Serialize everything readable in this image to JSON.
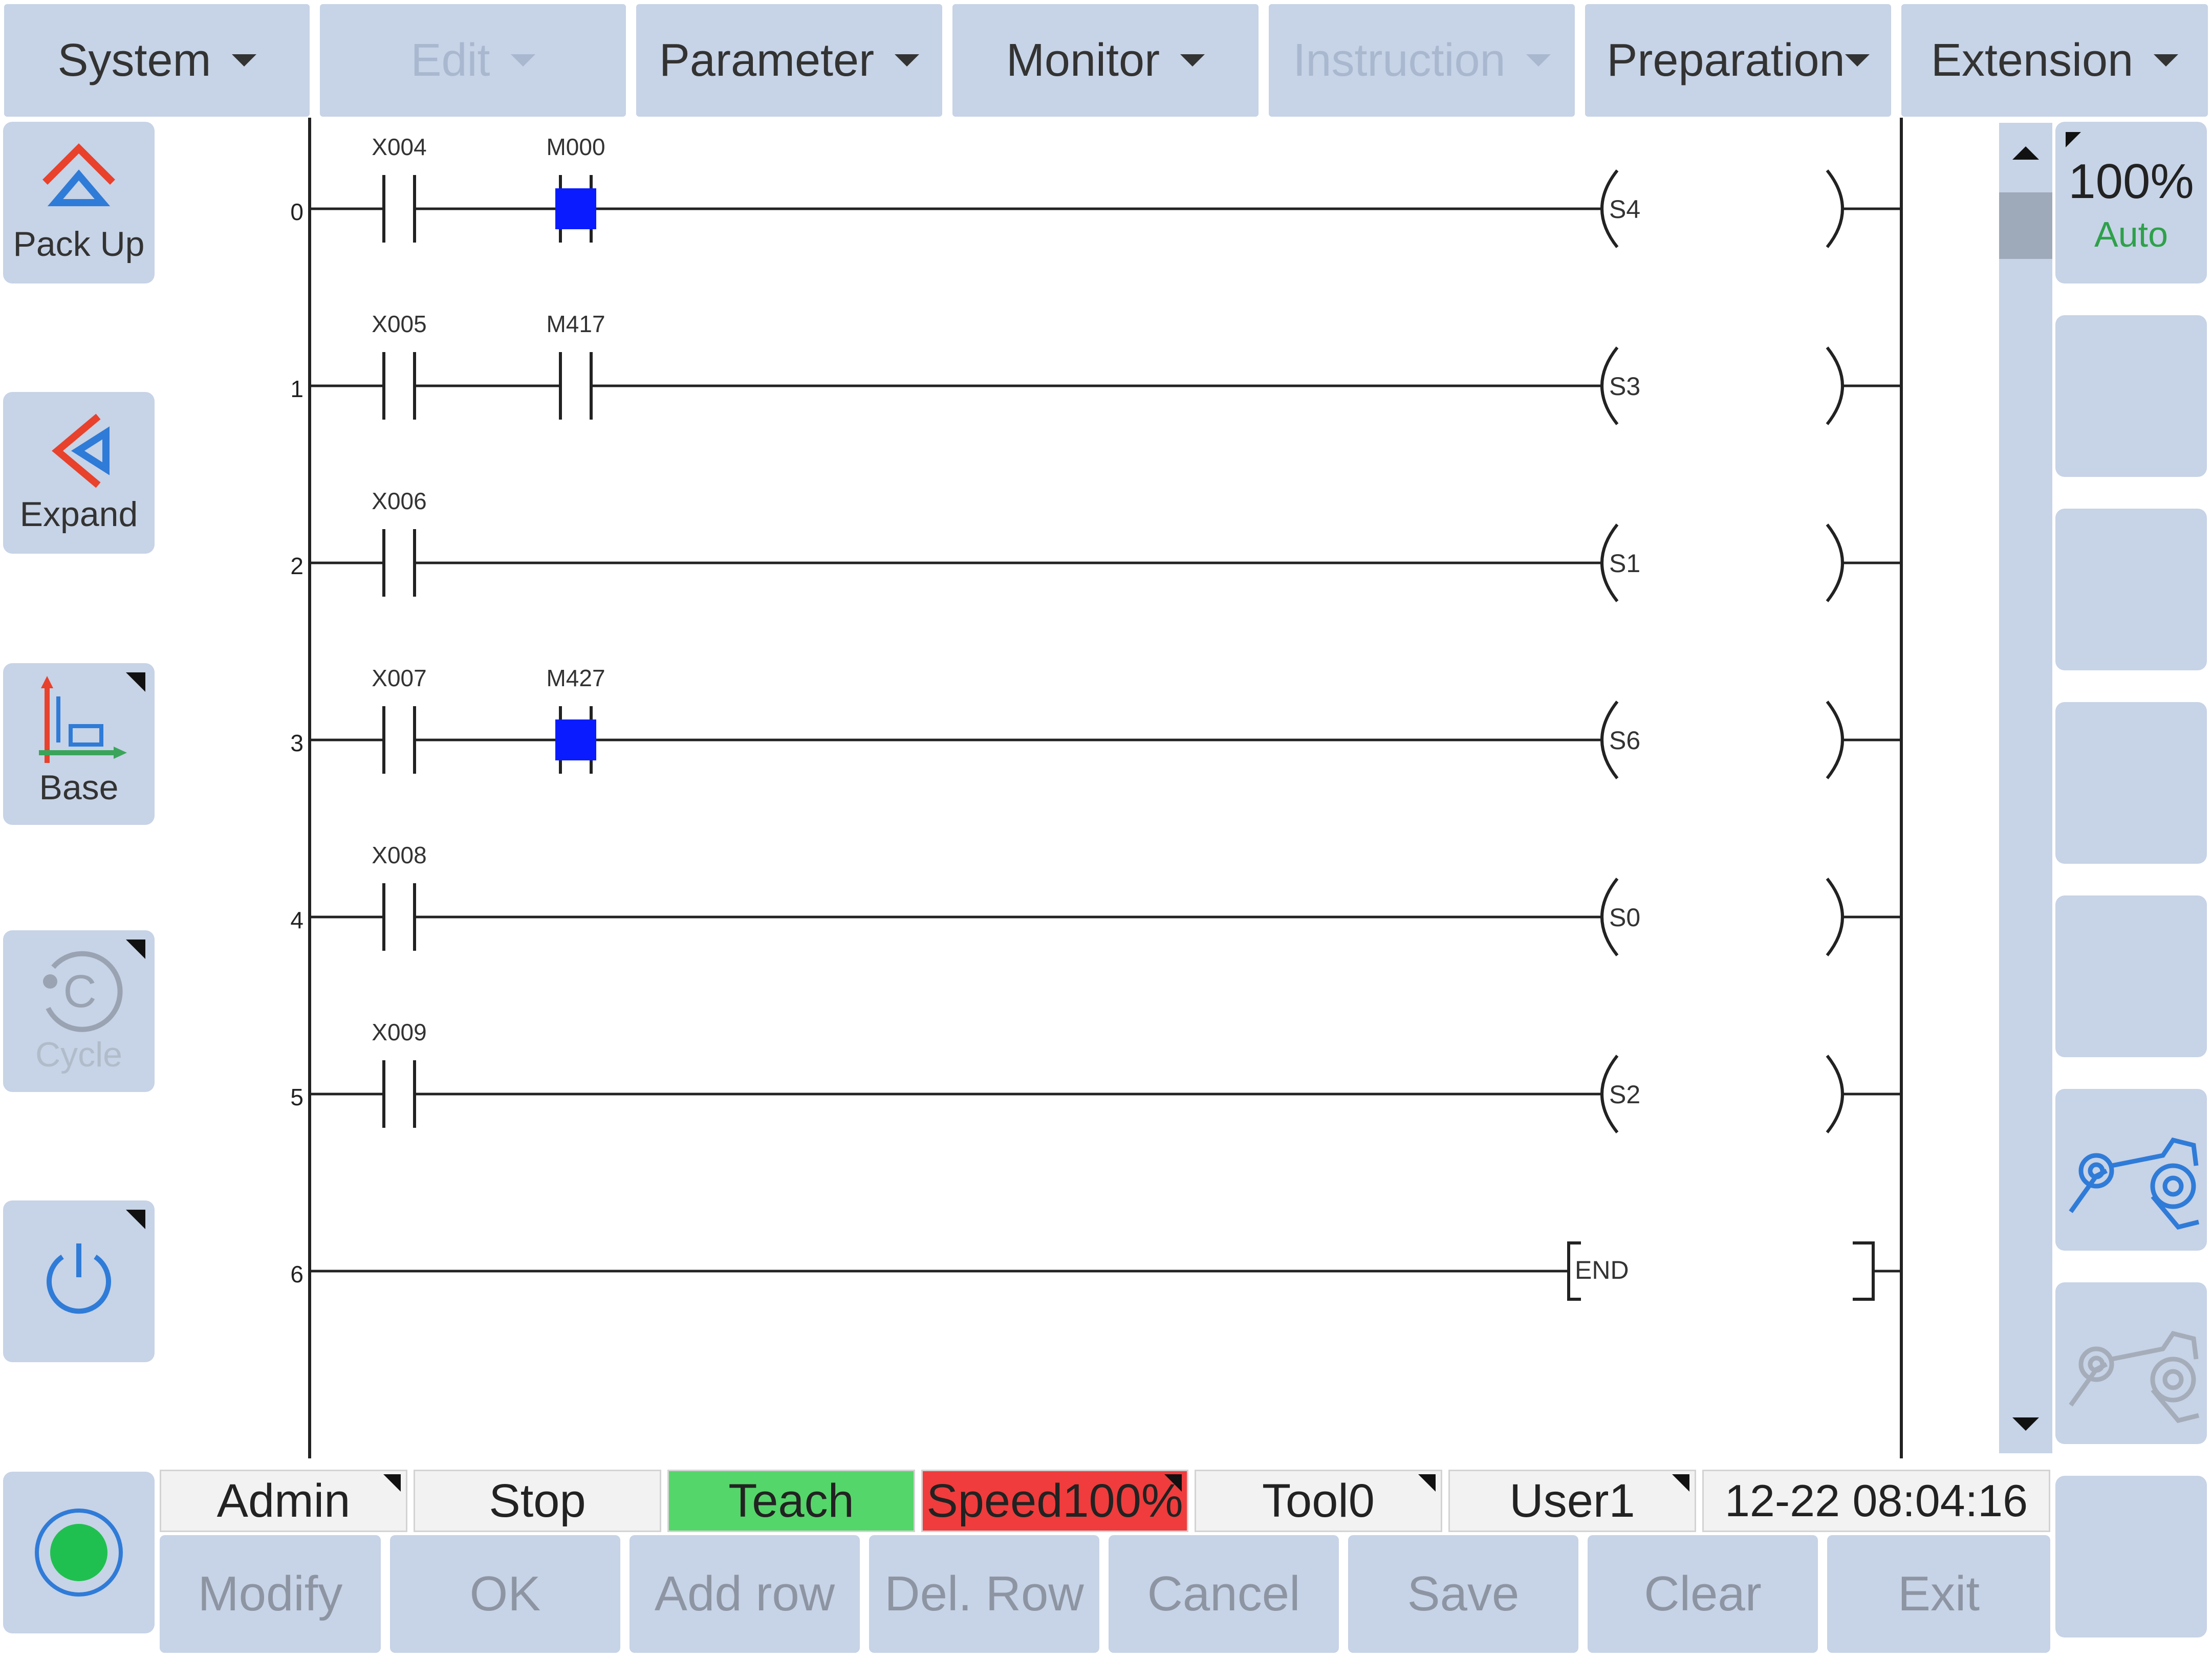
{
  "menu": [
    {
      "label": "System",
      "enabled": true
    },
    {
      "label": "Edit",
      "enabled": false
    },
    {
      "label": "Parameter",
      "enabled": true
    },
    {
      "label": "Monitor",
      "enabled": true
    },
    {
      "label": "Instruction",
      "enabled": false
    },
    {
      "label": "Preparation",
      "enabled": true
    },
    {
      "label": "Extension",
      "enabled": true
    }
  ],
  "left_buttons": {
    "pack_up": {
      "label": "Pack Up",
      "icon": "pack-up-icon"
    },
    "expand": {
      "label": "Expand",
      "icon": "expand-icon"
    },
    "base": {
      "label": "Base",
      "icon": "base-coordinate-icon"
    },
    "cycle": {
      "label": "Cycle",
      "icon": "cycle-icon",
      "enabled": false
    },
    "power": {
      "icon": "power-icon"
    },
    "record": {
      "icon": "record-icon"
    }
  },
  "right_panel": {
    "speed_value": "100%",
    "mode": "Auto",
    "robot_icons": [
      "robot-arm-icon",
      "robot-arm-disabled-icon"
    ]
  },
  "ladder": {
    "rungs": [
      {
        "index": "0",
        "contacts": [
          "X004",
          "M000"
        ],
        "output": "S4",
        "highlighted": [
          "M000"
        ]
      },
      {
        "index": "1",
        "contacts": [
          "X005",
          "M417"
        ],
        "output": "S3",
        "highlighted": []
      },
      {
        "index": "2",
        "contacts": [
          "X006"
        ],
        "output": "S1",
        "highlighted": []
      },
      {
        "index": "3",
        "contacts": [
          "X007",
          "M427"
        ],
        "output": "S6",
        "highlighted": [
          "M427"
        ]
      },
      {
        "index": "4",
        "contacts": [
          "X008"
        ],
        "output": "S0",
        "highlighted": []
      },
      {
        "index": "5",
        "contacts": [
          "X009"
        ],
        "output": "S2",
        "highlighted": []
      },
      {
        "index": "6",
        "contacts": [],
        "output": "END",
        "highlighted": []
      }
    ]
  },
  "status": {
    "user": "Admin",
    "run_state": "Stop",
    "mode": "Teach",
    "speed": "Speed100%",
    "tool": "Tool0",
    "user_frame": "User1",
    "datetime": "12-22 08:04:16"
  },
  "status_colors": {
    "teach": "#55d66a",
    "speed": "#f03c3c"
  },
  "bottom_buttons": [
    "Modify",
    "OK",
    "Add row",
    "Del. Row",
    "Cancel",
    "Save",
    "Clear",
    "Exit"
  ]
}
